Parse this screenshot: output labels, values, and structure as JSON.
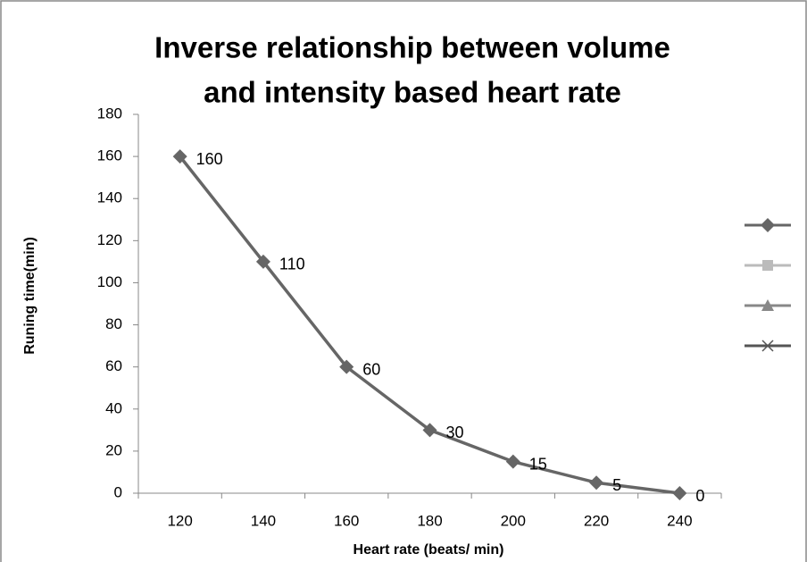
{
  "chart_data": {
    "type": "line",
    "title": [
      "Inverse relationship between volume",
      "and intensity based heart rate"
    ],
    "x_label": "Heart rate (beats/ min)",
    "y_label": "Runing time(min)",
    "categories": [
      "120",
      "140",
      "160",
      "180",
      "200",
      "220",
      "240"
    ],
    "series": [
      {
        "color": "#666666",
        "marker": "diamond",
        "values": [
          160,
          110,
          60,
          30,
          15,
          5,
          0
        ]
      }
    ],
    "ylim": [
      0,
      180
    ],
    "yticks": [
      0,
      20,
      40,
      60,
      80,
      100,
      120,
      140,
      160,
      180
    ],
    "data_labels": true,
    "legend_position": "right",
    "legend": [
      {
        "marker": "diamond",
        "color": "#666666"
      },
      {
        "marker": "square",
        "color": "#bbbbbb"
      },
      {
        "marker": "triangle",
        "color": "#888888"
      },
      {
        "marker": "x",
        "color": "#555555"
      }
    ]
  }
}
